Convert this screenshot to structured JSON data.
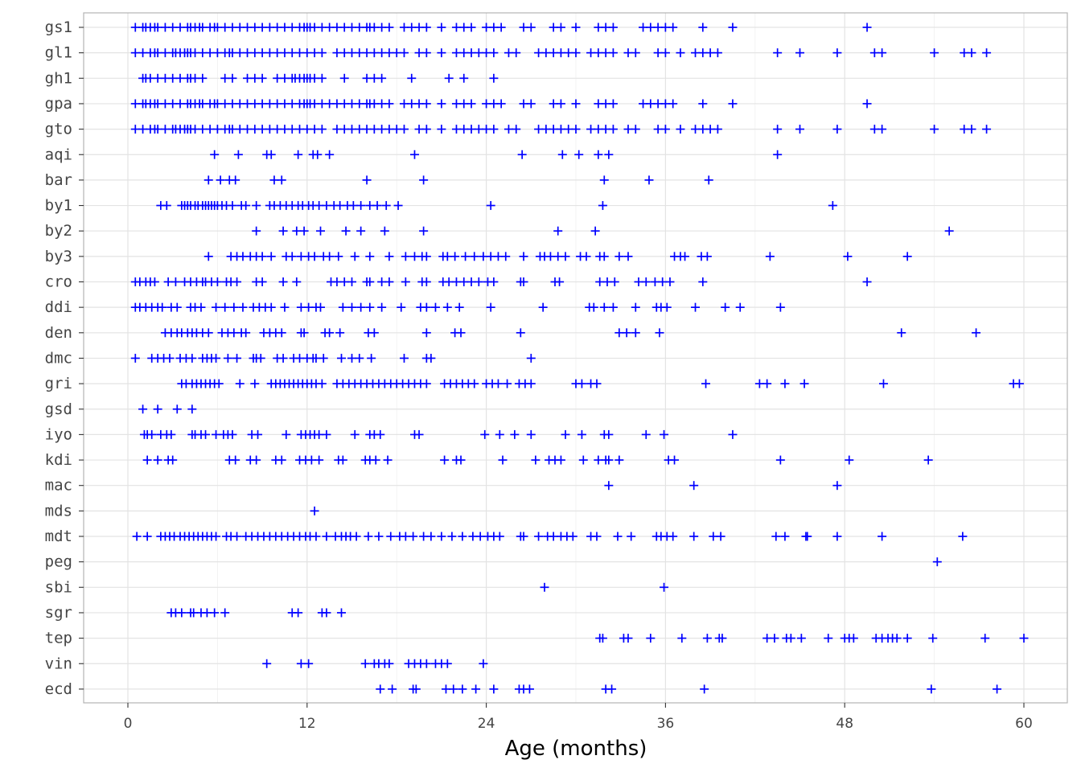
{
  "chart_data": {
    "type": "scatter",
    "title": "",
    "xlabel": "Age (months)",
    "ylabel": "",
    "xlim": [
      -1.7,
      61.5
    ],
    "xticks": [
      0,
      12,
      24,
      36,
      48,
      60
    ],
    "grid": true,
    "legend": "none",
    "marker": "plus",
    "color": "#0000ff",
    "categories": [
      "gs1",
      "gl1",
      "gh1",
      "gpa",
      "gto",
      "aqi",
      "bar",
      "by1",
      "by2",
      "by3",
      "cro",
      "ddi",
      "den",
      "dmc",
      "gri",
      "gsd",
      "iyo",
      "kdi",
      "mac",
      "mds",
      "mdt",
      "peg",
      "sbi",
      "sgr",
      "tep",
      "vin",
      "ecd"
    ],
    "points": {
      "gs1": [
        0.5,
        1.0,
        1.2,
        1.5,
        1.8,
        2.0,
        2.5,
        3.0,
        3.5,
        4.0,
        4.2,
        4.5,
        4.8,
        5.0,
        5.5,
        5.8,
        6.0,
        6.5,
        7.0,
        7.5,
        8.0,
        8.5,
        9.0,
        9.5,
        10.0,
        10.5,
        11.0,
        11.5,
        11.8,
        12.0,
        12.2,
        12.5,
        13.0,
        13.5,
        14.0,
        14.5,
        15.0,
        15.5,
        16.0,
        16.2,
        16.5,
        17.0,
        17.5,
        18.5,
        19.0,
        19.5,
        20.0,
        21.0,
        22.0,
        22.5,
        23.0,
        24.0,
        24.5,
        25.0,
        26.5,
        27.0,
        28.5,
        29.0,
        30.0,
        31.5,
        32.0,
        32.5,
        34.5,
        35.0,
        35.5,
        36.0,
        36.5,
        38.5,
        40.5,
        49.5
      ],
      "gl1": [
        0.5,
        1.0,
        1.5,
        1.8,
        2.0,
        2.5,
        3.0,
        3.2,
        3.5,
        3.8,
        4.0,
        4.2,
        4.5,
        5.0,
        5.5,
        6.0,
        6.5,
        6.8,
        7.0,
        7.5,
        8.0,
        8.5,
        9.0,
        9.5,
        10.0,
        10.5,
        11.0,
        11.5,
        12.0,
        12.5,
        13.0,
        14.0,
        14.5,
        15.0,
        15.5,
        16.0,
        16.5,
        17.0,
        17.5,
        18.0,
        18.5,
        19.5,
        20.0,
        21.0,
        22.0,
        22.5,
        23.0,
        23.5,
        24.0,
        24.5,
        25.5,
        26.0,
        27.5,
        28.0,
        28.5,
        29.0,
        29.5,
        30.0,
        31.0,
        31.5,
        32.0,
        32.5,
        33.5,
        34.0,
        35.5,
        36.0,
        37.0,
        38.0,
        38.5,
        39.0,
        39.5,
        43.5,
        45.0,
        47.5,
        50.0,
        50.5,
        54.0,
        56.0,
        56.5,
        57.5
      ],
      "gh1": [
        1.0,
        1.2,
        1.5,
        2.0,
        2.5,
        3.0,
        3.5,
        4.0,
        4.2,
        4.5,
        5.0,
        6.5,
        7.0,
        8.0,
        8.5,
        9.0,
        10.0,
        10.5,
        11.0,
        11.2,
        11.5,
        11.8,
        12.0,
        12.2,
        12.5,
        13.0,
        14.5,
        16.0,
        16.5,
        17.0,
        19.0,
        21.5,
        22.5,
        24.5
      ],
      "gpa": [
        0.5,
        1.0,
        1.2,
        1.5,
        1.8,
        2.0,
        2.5,
        3.0,
        3.5,
        4.0,
        4.2,
        4.5,
        4.8,
        5.0,
        5.5,
        5.8,
        6.0,
        6.5,
        7.0,
        7.5,
        8.0,
        8.5,
        9.0,
        9.5,
        10.0,
        10.5,
        11.0,
        11.5,
        11.8,
        12.0,
        12.2,
        12.5,
        13.0,
        13.5,
        14.0,
        14.5,
        15.0,
        15.5,
        16.0,
        16.2,
        16.5,
        17.0,
        17.5,
        18.5,
        19.0,
        19.5,
        20.0,
        21.0,
        22.0,
        22.5,
        23.0,
        24.0,
        24.5,
        25.0,
        26.5,
        27.0,
        28.5,
        29.0,
        30.0,
        31.5,
        32.0,
        32.5,
        34.5,
        35.0,
        35.5,
        36.0,
        36.5,
        38.5,
        40.5,
        49.5
      ],
      "gto": [
        0.5,
        1.0,
        1.5,
        1.8,
        2.0,
        2.5,
        3.0,
        3.2,
        3.5,
        3.8,
        4.0,
        4.2,
        4.5,
        5.0,
        5.5,
        6.0,
        6.5,
        6.8,
        7.0,
        7.5,
        8.0,
        8.5,
        9.0,
        9.5,
        10.0,
        10.5,
        11.0,
        11.5,
        12.0,
        12.5,
        13.0,
        14.0,
        14.5,
        15.0,
        15.5,
        16.0,
        16.5,
        17.0,
        17.5,
        18.0,
        18.5,
        19.5,
        20.0,
        21.0,
        22.0,
        22.5,
        23.0,
        23.5,
        24.0,
        24.5,
        25.5,
        26.0,
        27.5,
        28.0,
        28.5,
        29.0,
        29.5,
        30.0,
        31.0,
        31.5,
        32.0,
        32.5,
        33.5,
        34.0,
        35.5,
        36.0,
        37.0,
        38.0,
        38.5,
        39.0,
        39.5,
        43.5,
        45.0,
        47.5,
        50.0,
        50.5,
        54.0,
        56.0,
        56.5,
        57.5
      ],
      "aqi": [
        5.8,
        7.4,
        9.3,
        9.6,
        11.4,
        12.4,
        12.7,
        13.5,
        19.2,
        26.4,
        29.1,
        30.2,
        31.5,
        32.2,
        43.5
      ],
      "bar": [
        5.4,
        6.2,
        6.8,
        7.2,
        9.8,
        10.3,
        16.0,
        19.8,
        31.9,
        34.9,
        38.9
      ],
      "by1": [
        2.2,
        2.6,
        3.6,
        3.8,
        4.0,
        4.2,
        4.5,
        4.7,
        5.0,
        5.2,
        5.4,
        5.6,
        5.8,
        6.0,
        6.3,
        6.6,
        7.0,
        7.6,
        7.9,
        8.6,
        9.5,
        9.8,
        10.2,
        10.6,
        11.0,
        11.4,
        11.7,
        12.1,
        12.4,
        12.8,
        13.3,
        13.8,
        14.2,
        14.7,
        15.1,
        15.6,
        16.2,
        16.7,
        17.3,
        18.1,
        24.3,
        31.8,
        47.2
      ],
      "by2": [
        8.6,
        10.4,
        11.3,
        11.8,
        12.9,
        14.6,
        15.6,
        17.2,
        19.8,
        28.8,
        31.3,
        55.0
      ],
      "by3": [
        5.4,
        6.9,
        7.3,
        7.7,
        8.2,
        8.6,
        9.0,
        9.6,
        10.6,
        11.0,
        11.6,
        12.1,
        12.5,
        13.1,
        13.5,
        14.1,
        15.2,
        16.2,
        17.5,
        18.6,
        19.2,
        19.7,
        20.0,
        21.1,
        21.4,
        21.9,
        22.6,
        23.2,
        23.8,
        24.3,
        24.8,
        25.3,
        26.5,
        27.6,
        27.9,
        28.3,
        28.8,
        29.3,
        30.3,
        30.7,
        31.6,
        31.9,
        32.9,
        33.5,
        36.6,
        37.0,
        37.3,
        38.4,
        38.8,
        43.0,
        48.2,
        52.2
      ],
      "cro": [
        0.5,
        0.8,
        1.2,
        1.5,
        1.8,
        2.7,
        3.2,
        3.8,
        4.2,
        4.6,
        5.0,
        5.2,
        5.6,
        6.0,
        6.6,
        6.9,
        7.3,
        8.6,
        9.0,
        10.4,
        11.3,
        13.6,
        14.0,
        14.5,
        15.0,
        16.0,
        16.2,
        17.0,
        17.5,
        18.6,
        19.7,
        20.0,
        21.1,
        21.5,
        22.0,
        22.5,
        23.0,
        23.5,
        24.1,
        24.5,
        26.3,
        26.5,
        28.6,
        28.9,
        31.6,
        32.1,
        32.6,
        34.2,
        34.7,
        35.3,
        35.8,
        36.3,
        38.5,
        49.5
      ],
      "ddi": [
        0.5,
        0.8,
        1.2,
        1.6,
        2.0,
        2.3,
        2.9,
        3.3,
        4.2,
        4.5,
        4.9,
        5.9,
        6.5,
        7.1,
        7.7,
        8.4,
        8.8,
        9.2,
        9.6,
        10.5,
        11.6,
        12.1,
        12.6,
        12.9,
        14.4,
        15.0,
        15.6,
        16.2,
        17.0,
        18.3,
        19.6,
        20.0,
        20.6,
        21.4,
        22.2,
        24.3,
        27.8,
        30.9,
        31.2,
        31.9,
        32.5,
        34.0,
        35.4,
        35.7,
        36.1,
        38.0,
        40.0,
        41.0,
        43.7
      ],
      "den": [
        2.5,
        2.9,
        3.3,
        3.6,
        4.0,
        4.3,
        4.6,
        5.0,
        5.4,
        6.3,
        6.7,
        7.1,
        7.6,
        7.9,
        9.1,
        9.5,
        9.9,
        10.3,
        11.6,
        11.8,
        13.2,
        13.5,
        14.2,
        16.1,
        16.5,
        20.0,
        21.9,
        22.3,
        26.3,
        32.9,
        33.4,
        34.0,
        35.6,
        51.8,
        56.8
      ],
      "dmc": [
        0.5,
        1.6,
        2.0,
        2.4,
        2.8,
        3.5,
        3.9,
        4.3,
        5.0,
        5.3,
        5.6,
        5.9,
        6.7,
        7.3,
        8.4,
        8.6,
        8.9,
        10.0,
        10.4,
        11.1,
        11.5,
        12.0,
        12.4,
        12.6,
        13.1,
        14.3,
        15.0,
        15.5,
        16.3,
        18.5,
        20.0,
        20.3,
        27.0
      ],
      "gri": [
        3.6,
        3.9,
        4.3,
        4.6,
        4.9,
        5.2,
        5.5,
        5.8,
        6.1,
        7.5,
        8.5,
        9.6,
        9.9,
        10.2,
        10.5,
        10.8,
        11.1,
        11.4,
        11.7,
        12.0,
        12.3,
        12.6,
        13.0,
        14.0,
        14.4,
        14.8,
        15.2,
        15.6,
        16.0,
        16.4,
        16.8,
        17.2,
        17.6,
        18.0,
        18.4,
        18.8,
        19.2,
        19.6,
        20.0,
        21.2,
        21.6,
        22.0,
        22.4,
        22.8,
        23.2,
        24.0,
        24.4,
        24.8,
        25.4,
        26.2,
        26.6,
        27.0,
        30.0,
        30.4,
        31.0,
        31.4,
        38.7,
        42.3,
        42.8,
        44.0,
        45.3,
        50.6,
        59.3,
        59.7
      ],
      "gsd": [
        1.0,
        2.0,
        3.3,
        4.3
      ],
      "iyo": [
        1.1,
        1.3,
        1.6,
        2.2,
        2.6,
        2.9,
        4.3,
        4.5,
        4.9,
        5.2,
        5.9,
        6.4,
        6.7,
        7.0,
        8.3,
        8.7,
        10.6,
        11.6,
        11.9,
        12.2,
        12.5,
        12.8,
        13.3,
        15.2,
        16.2,
        16.5,
        16.9,
        19.2,
        19.5,
        23.9,
        24.9,
        25.9,
        27.0,
        29.3,
        30.4,
        31.9,
        32.2,
        34.7,
        35.9,
        40.5
      ],
      "kdi": [
        1.3,
        2.0,
        2.7,
        3.0,
        6.8,
        7.2,
        8.2,
        8.6,
        9.9,
        10.3,
        11.5,
        11.9,
        12.3,
        12.8,
        14.1,
        14.4,
        15.9,
        16.2,
        16.6,
        17.4,
        21.2,
        22.0,
        22.3,
        25.1,
        27.3,
        28.2,
        28.6,
        29.0,
        30.5,
        31.5,
        32.0,
        32.2,
        32.9,
        36.2,
        36.6,
        43.7,
        48.3,
        53.6
      ],
      "mac": [
        32.2,
        37.9,
        47.5
      ],
      "mds": [
        12.5
      ],
      "mdt": [
        0.6,
        1.3,
        2.2,
        2.5,
        2.8,
        3.1,
        3.5,
        3.8,
        4.1,
        4.4,
        4.7,
        5.0,
        5.3,
        5.6,
        5.9,
        6.6,
        6.9,
        7.3,
        7.9,
        8.3,
        8.7,
        9.1,
        9.5,
        9.9,
        10.3,
        10.7,
        11.1,
        11.5,
        11.9,
        12.2,
        12.6,
        13.3,
        13.9,
        14.3,
        14.6,
        14.9,
        15.3,
        16.1,
        16.8,
        17.6,
        18.2,
        18.6,
        19.1,
        19.8,
        20.3,
        21.0,
        21.7,
        22.4,
        23.1,
        23.6,
        24.1,
        24.5,
        24.9,
        26.3,
        26.5,
        27.5,
        28.1,
        28.5,
        29.0,
        29.4,
        29.8,
        31.0,
        31.4,
        32.8,
        33.7,
        35.4,
        35.7,
        36.1,
        36.5,
        37.9,
        39.2,
        39.7,
        43.4,
        44.0,
        45.4,
        45.5,
        47.5,
        50.5,
        55.9
      ],
      "peg": [
        54.2
      ],
      "sbi": [
        27.9,
        35.9
      ],
      "sgr": [
        2.9,
        3.2,
        3.6,
        4.2,
        4.4,
        4.9,
        5.3,
        5.8,
        6.5,
        11.0,
        11.4,
        13.0,
        13.3,
        14.3
      ],
      "tep": [
        31.6,
        31.8,
        33.2,
        33.5,
        35.0,
        37.1,
        38.8,
        39.6,
        39.8,
        42.8,
        43.3,
        44.1,
        44.4,
        45.1,
        46.9,
        48.0,
        48.3,
        48.6,
        50.1,
        50.5,
        50.9,
        51.2,
        51.5,
        52.2,
        53.9,
        57.4,
        60.0
      ],
      "vin": [
        9.3,
        11.6,
        12.1,
        15.9,
        16.5,
        16.8,
        17.2,
        17.5,
        18.8,
        19.2,
        19.6,
        20.0,
        20.6,
        21.0,
        21.4,
        23.8
      ],
      "ecd": [
        16.9,
        17.7,
        19.1,
        19.3,
        21.3,
        21.8,
        22.4,
        23.3,
        24.5,
        26.2,
        26.5,
        26.9,
        32.0,
        32.4,
        38.6,
        53.8,
        58.2
      ]
    }
  }
}
